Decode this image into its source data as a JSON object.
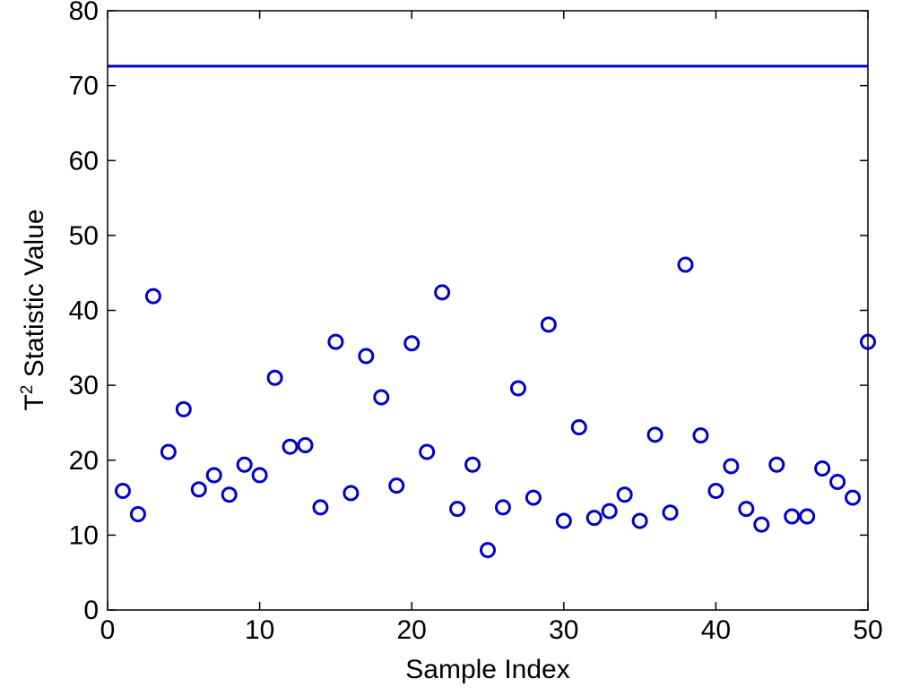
{
  "chart_data": {
    "type": "scatter",
    "xlabel": "Sample Index",
    "ylabel_base": "T",
    "ylabel_sup": "2",
    "ylabel_rest": " Statistic Value",
    "xlim": [
      0,
      50
    ],
    "ylim": [
      0,
      80
    ],
    "xticks": [
      "0",
      "10",
      "20",
      "30",
      "40",
      "50"
    ],
    "yticks": [
      "0",
      "10",
      "20",
      "30",
      "40",
      "50",
      "60",
      "70",
      "80"
    ],
    "grid": false,
    "marker": "circle",
    "series": [
      {
        "color": "#0000cc",
        "x": [
          1,
          2,
          3,
          4,
          5,
          6,
          7,
          8,
          9,
          10,
          11,
          12,
          13,
          14,
          15,
          16,
          17,
          18,
          19,
          20,
          21,
          22,
          23,
          24,
          25,
          26,
          27,
          28,
          29,
          30,
          31,
          32,
          33,
          34,
          35,
          36,
          37,
          38,
          39,
          40,
          41,
          42,
          43,
          44,
          45,
          46,
          47,
          48,
          49,
          50
        ],
        "y": [
          15.9,
          12.8,
          41.9,
          21.1,
          26.8,
          16.1,
          18.0,
          15.4,
          19.4,
          18.0,
          31.0,
          21.8,
          22.0,
          13.7,
          35.8,
          15.6,
          33.9,
          28.4,
          16.6,
          35.6,
          21.1,
          42.4,
          13.5,
          19.4,
          8.0,
          13.7,
          29.6,
          15.0,
          38.1,
          11.9,
          24.4,
          12.3,
          13.2,
          15.4,
          11.9,
          23.4,
          13.0,
          46.1,
          23.3,
          15.9,
          19.2,
          13.5,
          11.4,
          19.4,
          12.5,
          12.5,
          18.9,
          17.1,
          15.0,
          35.8
        ]
      }
    ],
    "threshold": {
      "y": 72.6,
      "color": "#0000cc"
    }
  }
}
